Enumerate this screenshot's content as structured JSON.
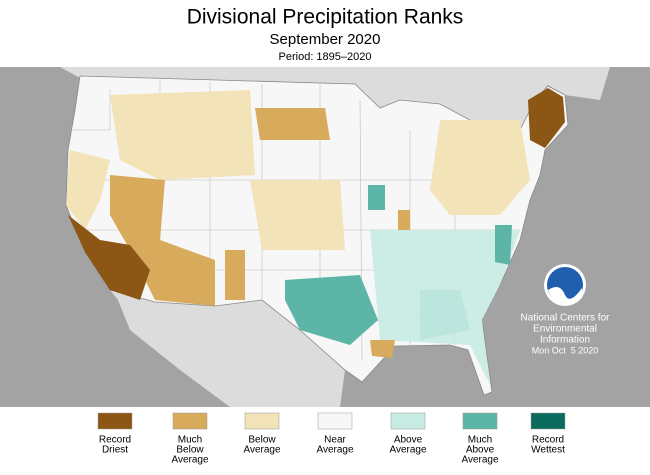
{
  "header": {
    "title": "Divisional Precipitation Ranks",
    "subtitle": "September 2020",
    "period": "Period: 1895–2020"
  },
  "credit": {
    "lines": [
      "National Centers for",
      "Environmental",
      "Information",
      "Mon Oct  5 2020"
    ]
  },
  "legend": {
    "items": [
      {
        "lines": [
          "Record",
          "Driest"
        ],
        "color": "#8c5714"
      },
      {
        "lines": [
          "Much",
          "Below",
          "Average"
        ],
        "color": "#d8aa5c"
      },
      {
        "lines": [
          "Below",
          "Average"
        ],
        "color": "#f3e3b8"
      },
      {
        "lines": [
          "Near",
          "Average"
        ],
        "color": "#f7f7f7"
      },
      {
        "lines": [
          "Above",
          "Average"
        ],
        "color": "#c7ebe3"
      },
      {
        "lines": [
          "Much",
          "Above",
          "Average"
        ],
        "color": "#5cb5a6"
      },
      {
        "lines": [
          "Record",
          "Wettest"
        ],
        "color": "#0a6b5c"
      }
    ]
  }
}
